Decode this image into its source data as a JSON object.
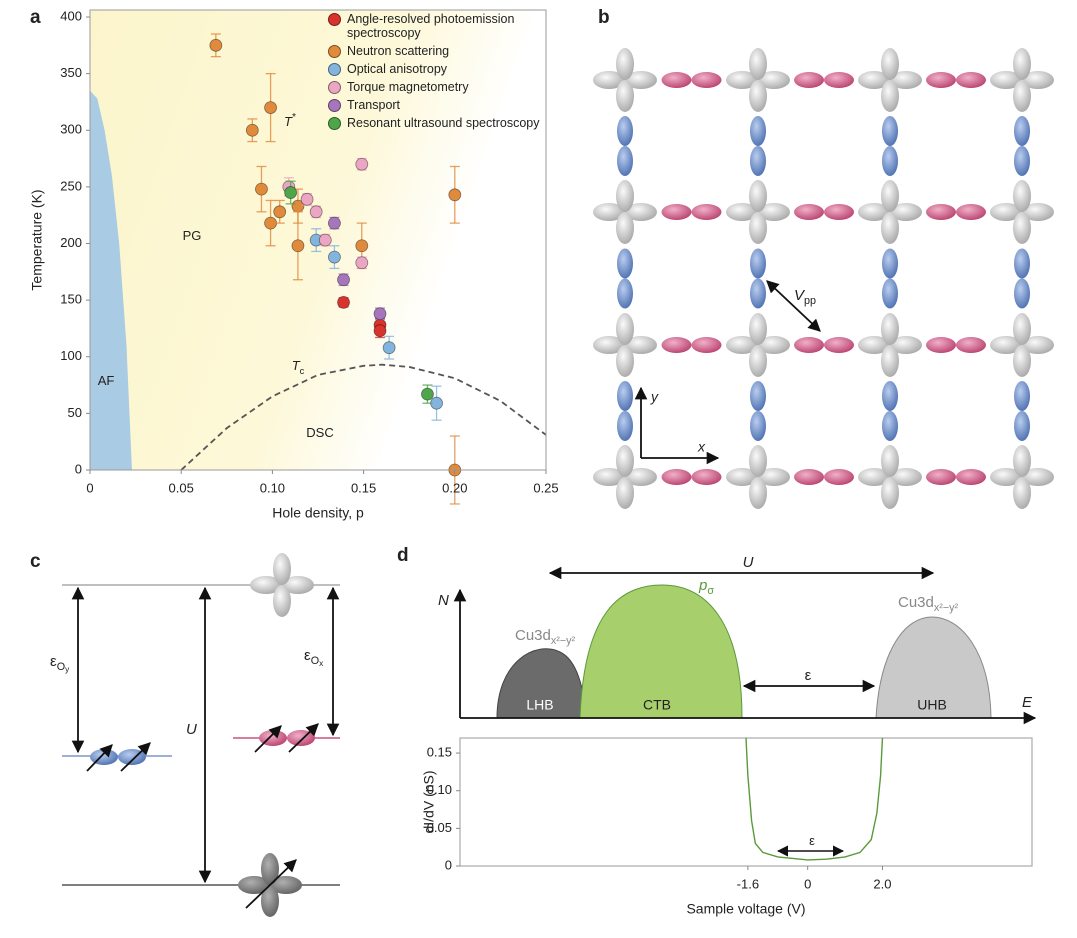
{
  "panel_labels": [
    "a",
    "b",
    "c",
    "d"
  ],
  "chart_data": [
    {
      "type": "scatter",
      "xlabel": "Hole density, p",
      "ylabel": "Temperature (K)",
      "xlim": [
        0,
        0.25
      ],
      "ylim": [
        0,
        400
      ],
      "xticks": [
        0,
        0.05,
        {
          "value": 0.1,
          "label": "0.10"
        },
        0.15,
        {
          "value": 0.2,
          "label": "0.20"
        },
        0.25
      ],
      "yticks": [
        0,
        50,
        100,
        150,
        200,
        250,
        300,
        350,
        400
      ],
      "series": [
        {
          "name": "Angle-resolved photoemission spectroscopy",
          "color": "#d9332e",
          "x": [
            0.139,
            0.159,
            0.159
          ],
          "values": [
            148,
            128,
            123
          ],
          "errors": [
            4,
            6,
            6
          ]
        },
        {
          "name": "Neutron scattering",
          "color": "#e08a3c",
          "x": [
            0.069,
            0.089,
            0.099,
            0.094,
            0.099,
            0.104,
            0.114,
            0.114,
            0.149,
            0.2,
            0.2
          ],
          "values": [
            375,
            300,
            320,
            248,
            218,
            228,
            233,
            198,
            198,
            243,
            0
          ],
          "errors": [
            10,
            10,
            30,
            20,
            20,
            10,
            15,
            30,
            20,
            25,
            30
          ]
        },
        {
          "name": "Optical anisotropy",
          "color": "#82b4de",
          "x": [
            0.124,
            0.134,
            0.164,
            0.19
          ],
          "values": [
            203,
            188,
            108,
            59
          ],
          "errors": [
            10,
            10,
            10,
            15
          ]
        },
        {
          "name": "Torque magnetometry",
          "color": "#eba6c4",
          "x": [
            0.109,
            0.119,
            0.124,
            0.129,
            0.149,
            0.149
          ],
          "values": [
            250,
            239,
            228,
            203,
            270,
            183
          ],
          "errors": [
            8,
            5,
            5,
            5,
            5,
            5
          ]
        },
        {
          "name": "Transport",
          "color": "#a576bb",
          "x": [
            0.134,
            0.139,
            0.159
          ],
          "values": [
            218,
            168,
            138
          ],
          "errors": [
            5,
            5,
            5
          ]
        },
        {
          "name": "Resonant ultrasound spectroscopy",
          "color": "#4fa54a",
          "x": [
            0.11,
            0.185
          ],
          "values": [
            245,
            67
          ],
          "errors": [
            10,
            8
          ]
        }
      ],
      "regions": [
        {
          "color": "#a9cbe3",
          "x": [
            0,
            0,
            0.004,
            0.008,
            0.012,
            0.016,
            0.02,
            0.023
          ],
          "values": [
            0,
            335,
            328,
            300,
            260,
            200,
            110,
            0
          ]
        }
      ],
      "lines": [
        {
          "color": "#555555",
          "style": "dashed",
          "x": [
            0.05,
            0.075,
            0.1,
            0.125,
            0.15,
            0.16,
            0.175,
            0.2,
            0.225,
            0.25
          ],
          "values": [
            0,
            37,
            65,
            84,
            92,
            93,
            91,
            81,
            61,
            31
          ]
        }
      ],
      "annotations": [
        {
          "text": "AF"
        },
        {
          "text": "PG"
        },
        {
          "text": "T",
          "sup": "*"
        },
        {
          "text": "T",
          "sub": "c"
        },
        {
          "text": "DSC"
        }
      ]
    },
    {
      "type": "line",
      "xlabel": "Sample voltage (V)",
      "ylabel": "dI/dV (nS)",
      "xlim": [
        -9.3,
        6.0
      ],
      "ylim": [
        0,
        0.17
      ],
      "xticks": [
        -1.6,
        0,
        {
          "value": 2,
          "label": "2.0"
        }
      ],
      "yticks": [
        0,
        0.05,
        {
          "value": 0.1,
          "label": "0.10"
        },
        0.15
      ],
      "x": [
        -1.65,
        -1.6,
        -1.5,
        -1.4,
        -1.2,
        -0.8,
        -0.4,
        0,
        0.5,
        1.0,
        1.4,
        1.7,
        1.85,
        1.95,
        2.0
      ],
      "series": [
        {
          "color": "#5a9a3a",
          "values": [
            0.17,
            0.12,
            0.06,
            0.03,
            0.018,
            0.012,
            0.01,
            0.008,
            0.009,
            0.012,
            0.018,
            0.035,
            0.07,
            0.12,
            0.17
          ]
        }
      ],
      "annotations": [
        {
          "text": "ε"
        }
      ]
    }
  ],
  "lattice": {
    "axis_labels": [
      "y",
      "x"
    ],
    "hopping": {
      "text": "V",
      "sub": "pp"
    }
  },
  "energy_levels": {
    "labels": [
      {
        "text": "ε",
        "sub": "O",
        "subsub": "y"
      },
      {
        "text": "U"
      },
      {
        "text": "ε",
        "sub": "O",
        "subsub": "x"
      }
    ]
  },
  "dos": {
    "axis_labels": [
      "N",
      "E"
    ],
    "bands": [
      "LHB",
      "CTB",
      "UHB"
    ],
    "annotations": [
      {
        "text": "U"
      },
      {
        "text": "p",
        "sub": "σ"
      },
      {
        "text": "Cu3d",
        "sub": "x²−y²"
      },
      {
        "text": "Cu3d",
        "sub": "x²−y²"
      },
      {
        "text": "ε"
      }
    ]
  }
}
